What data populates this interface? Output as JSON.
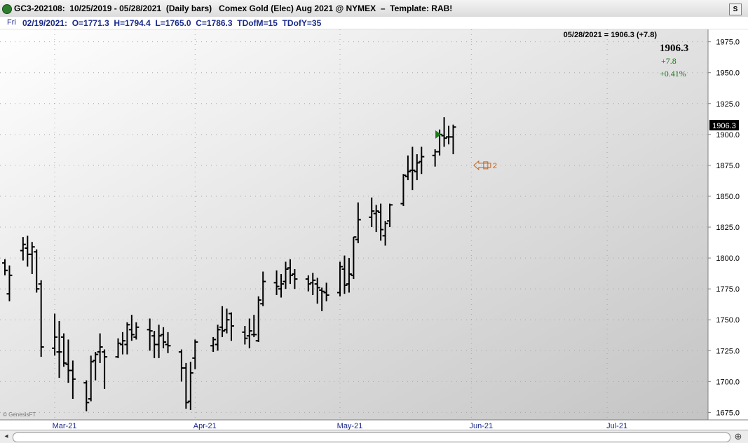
{
  "window": {
    "title": "GC3-202108:  10/25/2019 - 05/28/2021  (Daily bars)   Comex Gold (Elec) Aug 2021 @ NYMEX  –  Template: RAB!",
    "s_button": "S"
  },
  "info": {
    "day": "Fri",
    "text": "02/19/2021:  O=1771.3  H=1794.4  L=1765.0  C=1786.3  TDofM=15  TDofY=35"
  },
  "quote": {
    "header": "05/28/2021 = 1906.3 (+7.8)",
    "last": "1906.3",
    "change": "+7.8",
    "pct": "+0.41%",
    "axis_label": "1906.3"
  },
  "watermark": "© GenesisFT",
  "marker_label": "2",
  "colors": {
    "bars": "#000000",
    "up": "#1a7a1a",
    "marker": "#c06018",
    "grid": "#a8a8a8"
  },
  "chart_data": {
    "type": "ohlc",
    "ylim": [
      1669,
      1985
    ],
    "y_ticks": [
      "1975.0",
      "1950.0",
      "1925.0",
      "1900.0",
      "1875.0",
      "1850.0",
      "1825.0",
      "1800.0",
      "1775.0",
      "1750.0",
      "1725.0",
      "1700.0",
      "1675.0"
    ],
    "y_tick_values": [
      1975,
      1950,
      1925,
      1900,
      1875,
      1850,
      1825,
      1800,
      1775,
      1750,
      1725,
      1700,
      1675
    ],
    "x_labels": [
      "Mar-21",
      "Apr-21",
      "May-21",
      "Jun-21",
      "Jul-21"
    ],
    "x_label_dates": [
      "2021-03-01",
      "2021-04-01",
      "2021-05-03",
      "2021-06-01",
      "2021-07-01"
    ],
    "x_range": [
      "2021-02-18",
      "2021-07-16"
    ],
    "bars": [
      {
        "date": "2021-02-18",
        "o": 1796,
        "h": 1799,
        "l": 1786,
        "c": 1790
      },
      {
        "date": "2021-02-19",
        "o": 1771,
        "h": 1794,
        "l": 1765,
        "c": 1786
      },
      {
        "date": "2021-02-22",
        "o": 1806,
        "h": 1817,
        "l": 1798,
        "c": 1811
      },
      {
        "date": "2021-02-23",
        "o": 1808,
        "h": 1818,
        "l": 1793,
        "c": 1803
      },
      {
        "date": "2021-02-24",
        "o": 1803,
        "h": 1813,
        "l": 1787,
        "c": 1809
      },
      {
        "date": "2021-02-25",
        "o": 1805,
        "h": 1807,
        "l": 1772,
        "c": 1775
      },
      {
        "date": "2021-02-26",
        "o": 1779,
        "h": 1782,
        "l": 1720,
        "c": 1728
      },
      {
        "date": "2021-03-01",
        "o": 1727,
        "h": 1755,
        "l": 1721,
        "c": 1736
      },
      {
        "date": "2021-03-02",
        "o": 1724,
        "h": 1749,
        "l": 1703,
        "c": 1724
      },
      {
        "date": "2021-03-03",
        "o": 1736,
        "h": 1739,
        "l": 1712,
        "c": 1715
      },
      {
        "date": "2021-03-04",
        "o": 1714,
        "h": 1734,
        "l": 1699,
        "c": 1709
      },
      {
        "date": "2021-03-05",
        "o": 1709,
        "h": 1717,
        "l": 1686,
        "c": 1702
      },
      {
        "date": "2021-03-08",
        "o": 1699,
        "h": 1701,
        "l": 1676,
        "c": 1683
      },
      {
        "date": "2021-03-09",
        "o": 1686,
        "h": 1721,
        "l": 1684,
        "c": 1716
      },
      {
        "date": "2021-03-10",
        "o": 1717,
        "h": 1724,
        "l": 1701,
        "c": 1722
      },
      {
        "date": "2021-03-11",
        "o": 1724,
        "h": 1739,
        "l": 1715,
        "c": 1728
      },
      {
        "date": "2021-03-12",
        "o": 1724,
        "h": 1726,
        "l": 1694,
        "c": 1720
      },
      {
        "date": "2021-03-15",
        "o": 1720,
        "h": 1735,
        "l": 1719,
        "c": 1731
      },
      {
        "date": "2021-03-16",
        "o": 1730,
        "h": 1740,
        "l": 1722,
        "c": 1733
      },
      {
        "date": "2021-03-17",
        "o": 1730,
        "h": 1748,
        "l": 1722,
        "c": 1746
      },
      {
        "date": "2021-03-18",
        "o": 1742,
        "h": 1754,
        "l": 1733,
        "c": 1738
      },
      {
        "date": "2021-03-19",
        "o": 1736,
        "h": 1748,
        "l": 1734,
        "c": 1744
      },
      {
        "date": "2021-03-22",
        "o": 1742,
        "h": 1751,
        "l": 1725,
        "c": 1741
      },
      {
        "date": "2021-03-23",
        "o": 1737,
        "h": 1741,
        "l": 1719,
        "c": 1730
      },
      {
        "date": "2021-03-24",
        "o": 1730,
        "h": 1746,
        "l": 1719,
        "c": 1737
      },
      {
        "date": "2021-03-25",
        "o": 1738,
        "h": 1744,
        "l": 1727,
        "c": 1732
      },
      {
        "date": "2021-03-26",
        "o": 1730,
        "h": 1740,
        "l": 1723,
        "c": 1729
      },
      {
        "date": "2021-03-29",
        "o": 1724,
        "h": 1726,
        "l": 1700,
        "c": 1711
      },
      {
        "date": "2021-03-30",
        "o": 1711,
        "h": 1715,
        "l": 1678,
        "c": 1683
      },
      {
        "date": "2021-03-31",
        "o": 1684,
        "h": 1716,
        "l": 1677,
        "c": 1707
      },
      {
        "date": "2021-04-01",
        "o": 1719,
        "h": 1734,
        "l": 1710,
        "c": 1732
      },
      {
        "date": "2021-04-05",
        "o": 1729,
        "h": 1736,
        "l": 1724,
        "c": 1734
      },
      {
        "date": "2021-04-06",
        "o": 1730,
        "h": 1746,
        "l": 1725,
        "c": 1742
      },
      {
        "date": "2021-04-07",
        "o": 1744,
        "h": 1761,
        "l": 1736,
        "c": 1741
      },
      {
        "date": "2021-04-08",
        "o": 1742,
        "h": 1759,
        "l": 1739,
        "c": 1750
      },
      {
        "date": "2021-04-09",
        "o": 1755,
        "h": 1756,
        "l": 1733,
        "c": 1745
      },
      {
        "date": "2021-04-12",
        "o": 1740,
        "h": 1745,
        "l": 1730,
        "c": 1735
      },
      {
        "date": "2021-04-13",
        "o": 1737,
        "h": 1751,
        "l": 1727,
        "c": 1741
      },
      {
        "date": "2021-04-14",
        "o": 1738,
        "h": 1754,
        "l": 1736,
        "c": 1738
      },
      {
        "date": "2021-04-15",
        "o": 1733,
        "h": 1769,
        "l": 1732,
        "c": 1766
      },
      {
        "date": "2021-04-16",
        "o": 1763,
        "h": 1789,
        "l": 1761,
        "c": 1781
      },
      {
        "date": "2021-04-19",
        "o": 1780,
        "h": 1790,
        "l": 1770,
        "c": 1777
      },
      {
        "date": "2021-04-20",
        "o": 1775,
        "h": 1787,
        "l": 1768,
        "c": 1779
      },
      {
        "date": "2021-04-21",
        "o": 1781,
        "h": 1797,
        "l": 1775,
        "c": 1791
      },
      {
        "date": "2021-04-22",
        "o": 1792,
        "h": 1799,
        "l": 1779,
        "c": 1786
      },
      {
        "date": "2021-04-23",
        "o": 1787,
        "h": 1791,
        "l": 1775,
        "c": 1783
      },
      {
        "date": "2021-04-26",
        "o": 1783,
        "h": 1786,
        "l": 1773,
        "c": 1779
      },
      {
        "date": "2021-04-27",
        "o": 1780,
        "h": 1788,
        "l": 1770,
        "c": 1782
      },
      {
        "date": "2021-04-28",
        "o": 1779,
        "h": 1784,
        "l": 1763,
        "c": 1776
      },
      {
        "date": "2021-04-29",
        "o": 1774,
        "h": 1776,
        "l": 1757,
        "c": 1773
      },
      {
        "date": "2021-04-30",
        "o": 1772,
        "h": 1780,
        "l": 1765,
        "c": 1770
      },
      {
        "date": "2021-05-03",
        "o": 1772,
        "h": 1797,
        "l": 1769,
        "c": 1793
      },
      {
        "date": "2021-05-04",
        "o": 1791,
        "h": 1802,
        "l": 1771,
        "c": 1778
      },
      {
        "date": "2021-05-05",
        "o": 1779,
        "h": 1800,
        "l": 1772,
        "c": 1787
      },
      {
        "date": "2021-05-06",
        "o": 1786,
        "h": 1817,
        "l": 1783,
        "c": 1817
      },
      {
        "date": "2021-05-07",
        "o": 1815,
        "h": 1845,
        "l": 1812,
        "c": 1831
      },
      {
        "date": "2021-05-10",
        "o": 1833,
        "h": 1849,
        "l": 1825,
        "c": 1838
      },
      {
        "date": "2021-05-11",
        "o": 1836,
        "h": 1843,
        "l": 1821,
        "c": 1838
      },
      {
        "date": "2021-05-12",
        "o": 1837,
        "h": 1844,
        "l": 1814,
        "c": 1823
      },
      {
        "date": "2021-05-13",
        "o": 1818,
        "h": 1830,
        "l": 1810,
        "c": 1828
      },
      {
        "date": "2021-05-14",
        "o": 1830,
        "h": 1844,
        "l": 1825,
        "c": 1843
      },
      {
        "date": "2021-05-17",
        "o": 1844,
        "h": 1868,
        "l": 1842,
        "c": 1867
      },
      {
        "date": "2021-05-18",
        "o": 1866,
        "h": 1883,
        "l": 1863,
        "c": 1870
      },
      {
        "date": "2021-05-19",
        "o": 1871,
        "h": 1890,
        "l": 1855,
        "c": 1871
      },
      {
        "date": "2021-05-20",
        "o": 1870,
        "h": 1884,
        "l": 1863,
        "c": 1877
      },
      {
        "date": "2021-05-21",
        "o": 1878,
        "h": 1890,
        "l": 1868,
        "c": 1882
      },
      {
        "date": "2021-05-24",
        "o": 1883,
        "h": 1888,
        "l": 1874,
        "c": 1886
      },
      {
        "date": "2021-05-25",
        "o": 1886,
        "h": 1904,
        "l": 1883,
        "c": 1900
      },
      {
        "date": "2021-05-26",
        "o": 1899,
        "h": 1914,
        "l": 1890,
        "c": 1897
      },
      {
        "date": "2021-05-27",
        "o": 1898,
        "h": 1907,
        "l": 1892,
        "c": 1898
      },
      {
        "date": "2021-05-28",
        "o": 1898,
        "h": 1908,
        "l": 1884,
        "c": 1906
      }
    ],
    "signal_up": {
      "date": "2021-05-25",
      "value": 1900
    },
    "target_marker": {
      "date": "2021-05-31",
      "value": 1875
    }
  }
}
